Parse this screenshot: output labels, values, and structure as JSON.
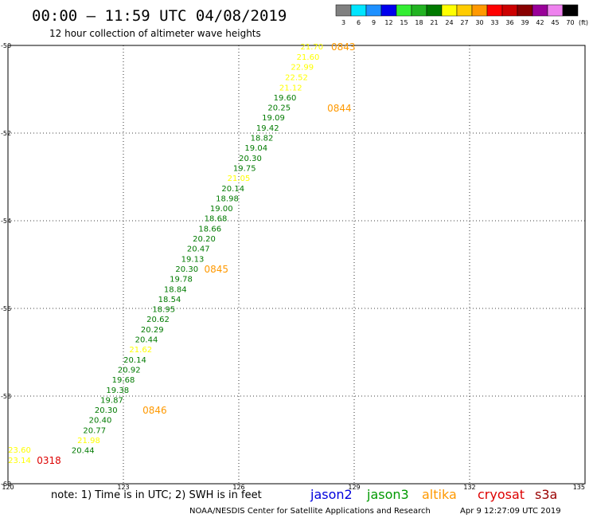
{
  "header": {
    "title": "00:00 — 11:59 UTC 04/08/2019",
    "subtitle": "12 hour collection of altimeter wave heights"
  },
  "legend_scale": {
    "unit": "(ft)",
    "bins": [
      {
        "label": "3",
        "color": "#808080"
      },
      {
        "label": "6",
        "color": "#00e5ff"
      },
      {
        "label": "9",
        "color": "#1e90ff"
      },
      {
        "label": "12",
        "color": "#0000ee"
      },
      {
        "label": "15",
        "color": "#33ee33"
      },
      {
        "label": "18",
        "color": "#22b322"
      },
      {
        "label": "21",
        "color": "#007a00"
      },
      {
        "label": "24",
        "color": "#ffff00"
      },
      {
        "label": "27",
        "color": "#ffcc00"
      },
      {
        "label": "30",
        "color": "#ff9900"
      },
      {
        "label": "33",
        "color": "#ff0000"
      },
      {
        "label": "36",
        "color": "#cc0000"
      },
      {
        "label": "39",
        "color": "#880000"
      },
      {
        "label": "42",
        "color": "#990099"
      },
      {
        "label": "45",
        "color": "#ee82ee"
      },
      {
        "label": "70",
        "color": "#000000"
      }
    ]
  },
  "footer": {
    "note": "note: 1) Time is in UTC; 2) SWH is in feet",
    "credit": "NOAA/NESDIS Center for Satellite Applications and Research",
    "timestamp": "Apr  9 12:27:09 UTC 2019",
    "satellites": [
      {
        "name": "jason2",
        "color": "#0000dd"
      },
      {
        "name": "jason3",
        "color": "#009900"
      },
      {
        "name": "altika",
        "color": "#ff9900"
      },
      {
        "name": "cryosat",
        "color": "#dd0000"
      },
      {
        "name": "s3a",
        "color": "#990000"
      }
    ]
  },
  "chart_data": {
    "type": "scatter",
    "xlim": [
      120,
      135
    ],
    "ylim": [
      -60,
      -50
    ],
    "x_ticks": [
      120,
      123,
      126,
      129,
      132,
      135
    ],
    "y_ticks": [
      -50,
      -52,
      -54,
      -56,
      -58,
      -60
    ],
    "grid": true,
    "points": [
      {
        "lon": 127.9,
        "lat": -50.02,
        "v": "21.70",
        "color": "#ffff00"
      },
      {
        "lon": 127.8,
        "lat": -50.25,
        "v": "21.60",
        "color": "#ffff00"
      },
      {
        "lon": 127.65,
        "lat": -50.48,
        "v": "22.99",
        "color": "#ffff00"
      },
      {
        "lon": 127.5,
        "lat": -50.72,
        "v": "22.52",
        "color": "#ffff00"
      },
      {
        "lon": 127.35,
        "lat": -50.95,
        "v": "21.12",
        "color": "#ffff00"
      },
      {
        "lon": 127.2,
        "lat": -51.18,
        "v": "19.60",
        "color": "#007a00"
      },
      {
        "lon": 127.05,
        "lat": -51.41,
        "v": "20.25",
        "color": "#007a00"
      },
      {
        "lon": 126.9,
        "lat": -51.64,
        "v": "19.09",
        "color": "#007a00"
      },
      {
        "lon": 126.75,
        "lat": -51.87,
        "v": "19.42",
        "color": "#007a00"
      },
      {
        "lon": 126.6,
        "lat": -52.1,
        "v": "18.82",
        "color": "#007a00"
      },
      {
        "lon": 126.45,
        "lat": -52.33,
        "v": "19.04",
        "color": "#007a00"
      },
      {
        "lon": 126.3,
        "lat": -52.56,
        "v": "20.30",
        "color": "#007a00"
      },
      {
        "lon": 126.15,
        "lat": -52.79,
        "v": "19.75",
        "color": "#007a00"
      },
      {
        "lon": 126.0,
        "lat": -53.02,
        "v": "21.05",
        "color": "#ffff00"
      },
      {
        "lon": 125.85,
        "lat": -53.25,
        "v": "20.14",
        "color": "#007a00"
      },
      {
        "lon": 125.7,
        "lat": -53.48,
        "v": "18.98",
        "color": "#007a00"
      },
      {
        "lon": 125.55,
        "lat": -53.71,
        "v": "19.00",
        "color": "#007a00"
      },
      {
        "lon": 125.4,
        "lat": -53.94,
        "v": "18.68",
        "color": "#007a00"
      },
      {
        "lon": 125.25,
        "lat": -54.17,
        "v": "18.66",
        "color": "#007a00"
      },
      {
        "lon": 125.1,
        "lat": -54.4,
        "v": "20.20",
        "color": "#007a00"
      },
      {
        "lon": 124.95,
        "lat": -54.63,
        "v": "20.47",
        "color": "#007a00"
      },
      {
        "lon": 124.8,
        "lat": -54.86,
        "v": "19.13",
        "color": "#007a00"
      },
      {
        "lon": 124.65,
        "lat": -55.09,
        "v": "20.30",
        "color": "#007a00"
      },
      {
        "lon": 124.5,
        "lat": -55.32,
        "v": "19.78",
        "color": "#007a00"
      },
      {
        "lon": 124.35,
        "lat": -55.55,
        "v": "18.84",
        "color": "#007a00"
      },
      {
        "lon": 124.2,
        "lat": -55.78,
        "v": "18.54",
        "color": "#007a00"
      },
      {
        "lon": 124.05,
        "lat": -56.01,
        "v": "18.95",
        "color": "#007a00"
      },
      {
        "lon": 123.9,
        "lat": -56.24,
        "v": "20.62",
        "color": "#007a00"
      },
      {
        "lon": 123.75,
        "lat": -56.47,
        "v": "20.29",
        "color": "#007a00"
      },
      {
        "lon": 123.6,
        "lat": -56.7,
        "v": "20.44",
        "color": "#007a00"
      },
      {
        "lon": 123.45,
        "lat": -56.93,
        "v": "21.62",
        "color": "#ffff00"
      },
      {
        "lon": 123.3,
        "lat": -57.16,
        "v": "20.14",
        "color": "#007a00"
      },
      {
        "lon": 123.15,
        "lat": -57.39,
        "v": "20.92",
        "color": "#007a00"
      },
      {
        "lon": 123.0,
        "lat": -57.62,
        "v": "19.68",
        "color": "#007a00"
      },
      {
        "lon": 122.85,
        "lat": -57.85,
        "v": "19.38",
        "color": "#007a00"
      },
      {
        "lon": 122.7,
        "lat": -58.08,
        "v": "19.87",
        "color": "#007a00"
      },
      {
        "lon": 122.55,
        "lat": -58.31,
        "v": "20.30",
        "color": "#007a00"
      },
      {
        "lon": 122.4,
        "lat": -58.54,
        "v": "20.40",
        "color": "#007a00"
      },
      {
        "lon": 122.25,
        "lat": -58.77,
        "v": "20.77",
        "color": "#007a00"
      },
      {
        "lon": 122.1,
        "lat": -59.0,
        "v": "21.98",
        "color": "#ffff00"
      },
      {
        "lon": 121.95,
        "lat": -59.23,
        "v": "20.44",
        "color": "#007a00"
      },
      {
        "lon": 120.3,
        "lat": -59.22,
        "v": "23.60",
        "color": "#ffff00"
      },
      {
        "lon": 120.3,
        "lat": -59.45,
        "v": "23.14",
        "color": "#ffff00"
      }
    ],
    "time_labels": [
      {
        "lon": 128.4,
        "lat": -50.02,
        "t": "0843",
        "color": "#ff9900"
      },
      {
        "lon": 128.3,
        "lat": -51.42,
        "t": "0844",
        "color": "#ff9900"
      },
      {
        "lon": 125.1,
        "lat": -55.09,
        "t": "0845",
        "color": "#ff9900"
      },
      {
        "lon": 123.5,
        "lat": -58.31,
        "t": "0846",
        "color": "#ff9900"
      },
      {
        "lon": 120.75,
        "lat": -59.45,
        "t": "0318",
        "color": "#dd0000"
      }
    ]
  }
}
